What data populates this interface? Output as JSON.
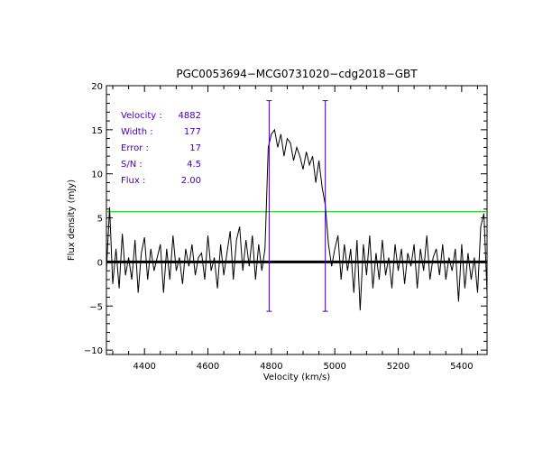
{
  "chart_data": {
    "type": "line",
    "title": "PGC0053694−MCG0731020−cdg2018−GBT",
    "xlabel": "Velocity (km/s)",
    "ylabel": "Flux density (mJy)",
    "xlim": [
      4280,
      5480
    ],
    "ylim": [
      -10.5,
      20
    ],
    "xticks": [
      4400,
      4600,
      4800,
      5000,
      5200,
      5400
    ],
    "xtick_labels": [
      "4400",
      "4600",
      "4800",
      "5000",
      "5200",
      "5400"
    ],
    "yticks": [
      -10,
      -5,
      0,
      5,
      10,
      15,
      20
    ],
    "ytick_labels": [
      "−10",
      "−5",
      "0",
      "5",
      "10",
      "15",
      "20"
    ],
    "grid": false,
    "legend": "none",
    "colors": {
      "spectrum": "#000000",
      "zero_line": "#000000",
      "threshold_line": "#00c000",
      "markers": "#4000c0",
      "annotation_text": "#4000c0"
    },
    "spectrum": {
      "x": [
        4280,
        4290,
        4300,
        4310,
        4320,
        4330,
        4340,
        4350,
        4360,
        4370,
        4380,
        4390,
        4400,
        4410,
        4420,
        4430,
        4440,
        4450,
        4460,
        4470,
        4480,
        4490,
        4500,
        4510,
        4520,
        4530,
        4540,
        4550,
        4560,
        4570,
        4580,
        4590,
        4600,
        4610,
        4620,
        4630,
        4640,
        4650,
        4660,
        4670,
        4680,
        4690,
        4700,
        4710,
        4720,
        4730,
        4740,
        4750,
        4760,
        4770,
        4780,
        4790,
        4800,
        4810,
        4820,
        4830,
        4840,
        4850,
        4860,
        4870,
        4880,
        4890,
        4900,
        4910,
        4920,
        4930,
        4940,
        4950,
        4960,
        4970,
        4980,
        4990,
        5000,
        5010,
        5020,
        5030,
        5040,
        5050,
        5060,
        5070,
        5080,
        5090,
        5100,
        5110,
        5120,
        5130,
        5140,
        5150,
        5160,
        5170,
        5180,
        5190,
        5200,
        5210,
        5220,
        5230,
        5240,
        5250,
        5260,
        5270,
        5280,
        5290,
        5300,
        5310,
        5320,
        5330,
        5340,
        5350,
        5360,
        5370,
        5380,
        5390,
        5400,
        5410,
        5420,
        5430,
        5440,
        5450,
        5460,
        5470,
        5480
      ],
      "y": [
        -1.0,
        6.2,
        -2.5,
        1.5,
        -3.0,
        3.2,
        -1.5,
        0.5,
        -2.0,
        2.5,
        -3.5,
        1.0,
        2.8,
        -2.0,
        1.5,
        -1.0,
        0.5,
        2.0,
        -3.5,
        1.5,
        -2.0,
        3.0,
        -1.0,
        0.5,
        -2.5,
        1.5,
        -0.5,
        2.0,
        -1.5,
        0.5,
        1.0,
        -2.0,
        3.0,
        -1.0,
        0.5,
        -3.0,
        2.0,
        -1.5,
        1.0,
        3.5,
        -2.0,
        2.5,
        4.0,
        -1.0,
        2.5,
        -0.5,
        3.0,
        -2.0,
        2.0,
        -1.0,
        1.5,
        13.0,
        14.5,
        15.0,
        13.0,
        14.5,
        12.0,
        14.0,
        13.5,
        11.5,
        13.0,
        12.0,
        10.5,
        12.5,
        11.0,
        12.0,
        9.0,
        11.5,
        8.5,
        6.5,
        2.0,
        -0.5,
        1.5,
        3.0,
        -2.0,
        2.0,
        -1.0,
        1.5,
        -3.5,
        2.5,
        -5.5,
        2.0,
        -1.5,
        3.0,
        -3.0,
        1.0,
        -2.0,
        2.5,
        -1.5,
        0.5,
        -3.0,
        2.0,
        -1.0,
        1.5,
        -2.5,
        1.0,
        -0.5,
        2.0,
        -3.0,
        1.5,
        -1.0,
        3.0,
        -2.0,
        0.5,
        1.5,
        -1.5,
        2.0,
        -2.0,
        0.5,
        -1.0,
        1.5,
        -4.5,
        2.0,
        -3.0,
        1.0,
        -2.0,
        0.5,
        -3.5,
        4.0,
        5.5,
        -3.5
      ]
    },
    "reference_lines": {
      "zero": 0,
      "threshold": 5.7
    },
    "width_markers": [
      {
        "x": 4793,
        "y_top": 18.3,
        "y_bottom": -5.6
      },
      {
        "x": 4970,
        "y_top": 18.3,
        "y_bottom": -5.6
      }
    ],
    "annotations": [
      {
        "label": "Velocity :",
        "value": "4882"
      },
      {
        "label": "Width :",
        "value": "177"
      },
      {
        "label": "Error :",
        "value": "17"
      },
      {
        "label": "S/N :",
        "value": "4.5"
      },
      {
        "label": "Flux :",
        "value": "2.00"
      }
    ]
  }
}
